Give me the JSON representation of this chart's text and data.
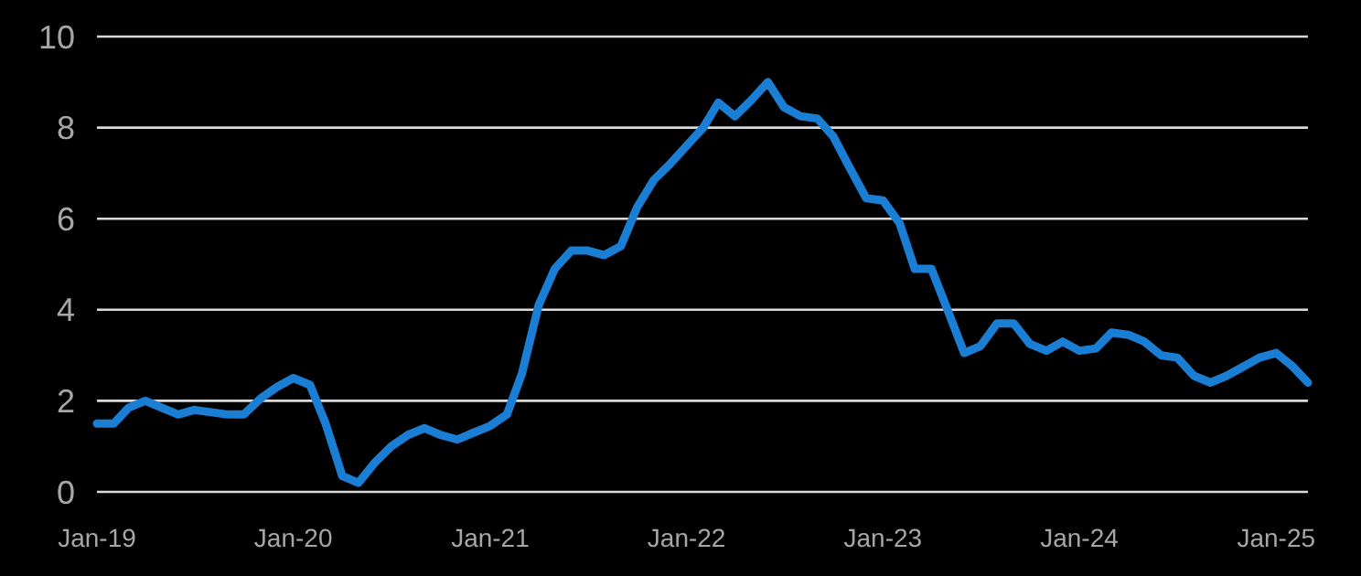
{
  "chart_data": {
    "type": "line",
    "x": [
      "2019-01",
      "2019-02",
      "2019-03",
      "2019-04",
      "2019-05",
      "2019-06",
      "2019-07",
      "2019-08",
      "2019-09",
      "2019-10",
      "2019-11",
      "2019-12",
      "2020-01",
      "2020-02",
      "2020-03",
      "2020-04",
      "2020-05",
      "2020-06",
      "2020-07",
      "2020-08",
      "2020-09",
      "2020-10",
      "2020-11",
      "2020-12",
      "2021-01",
      "2021-02",
      "2021-03",
      "2021-04",
      "2021-05",
      "2021-06",
      "2021-07",
      "2021-08",
      "2021-09",
      "2021-10",
      "2021-11",
      "2021-12",
      "2022-01",
      "2022-02",
      "2022-03",
      "2022-04",
      "2022-05",
      "2022-06",
      "2022-07",
      "2022-08",
      "2022-09",
      "2022-10",
      "2022-11",
      "2022-12",
      "2023-01",
      "2023-02",
      "2023-03",
      "2023-04",
      "2023-05",
      "2023-06",
      "2023-07",
      "2023-08",
      "2023-09",
      "2023-10",
      "2023-11",
      "2023-12",
      "2024-01",
      "2024-02",
      "2024-03",
      "2024-04",
      "2024-05",
      "2024-06",
      "2024-07",
      "2024-08",
      "2024-09",
      "2024-10",
      "2024-11",
      "2024-12",
      "2025-01",
      "2025-02",
      "2025-03"
    ],
    "series": [
      {
        "color": "#1a7fd4",
        "values": [
          1.5,
          1.5,
          1.85,
          2.0,
          1.85,
          1.7,
          1.8,
          1.75,
          1.7,
          1.7,
          2.05,
          2.3,
          2.5,
          2.35,
          1.5,
          0.35,
          0.2,
          0.65,
          1.0,
          1.25,
          1.4,
          1.25,
          1.15,
          1.3,
          1.45,
          1.7,
          2.6,
          4.1,
          4.9,
          5.3,
          5.3,
          5.2,
          5.4,
          6.25,
          6.85,
          7.2,
          7.6,
          8.0,
          8.55,
          8.25,
          8.6,
          9.0,
          8.45,
          8.25,
          8.2,
          7.8,
          7.1,
          6.45,
          6.4,
          5.9,
          4.9,
          4.9,
          4.0,
          3.05,
          3.2,
          3.7,
          3.7,
          3.25,
          3.1,
          3.3,
          3.1,
          3.15,
          3.5,
          3.45,
          3.3,
          3.0,
          2.95,
          2.55,
          2.4,
          2.55,
          2.75,
          2.95,
          3.05,
          2.75,
          2.4
        ]
      }
    ],
    "xlim": [
      "2019-01",
      "2025-03"
    ],
    "xticks": [
      {
        "value": "2019-01",
        "label": "Jan-19"
      },
      {
        "value": "2020-01",
        "label": "Jan-20"
      },
      {
        "value": "2021-01",
        "label": "Jan-21"
      },
      {
        "value": "2022-01",
        "label": "Jan-22"
      },
      {
        "value": "2023-01",
        "label": "Jan-23"
      },
      {
        "value": "2024-01",
        "label": "Jan-24"
      },
      {
        "value": "2025-01",
        "label": "Jan-25"
      }
    ],
    "ylim": [
      0,
      10
    ],
    "yticks": [
      0,
      2,
      4,
      6,
      8,
      10
    ],
    "grid": "y",
    "marker": "none",
    "line_style": "solid"
  }
}
